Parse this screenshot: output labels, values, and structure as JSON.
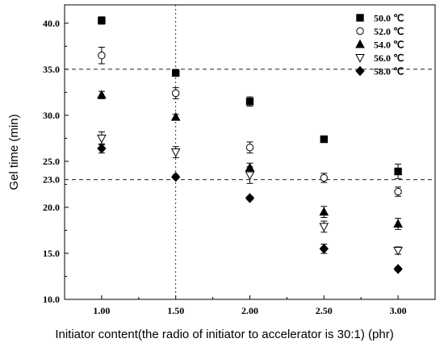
{
  "chart_data": {
    "type": "scatter",
    "xlabel": "Initiator content(the radio of initiator to accelerator is 30:1) (phr)",
    "ylabel": "Gel time (min)",
    "x": [
      1.0,
      1.5,
      2.0,
      2.5,
      3.0
    ],
    "xticks": [
      "1.00",
      "1.50",
      "2.00",
      "2.50",
      "3.00"
    ],
    "xlim": [
      0.75,
      3.25
    ],
    "ylim": [
      10.0,
      42.0
    ],
    "yticks": [
      "10.0",
      "15.0",
      "20.0",
      "25.0",
      "30.0",
      "35.0",
      "40.0"
    ],
    "extra_ytick": {
      "value": 23.0,
      "label": "23.0"
    },
    "reference_lines": {
      "horizontal": [
        35.0,
        23.0
      ],
      "vertical": [
        1.5
      ],
      "style": "dashed"
    },
    "legend_position": "top-right",
    "series": [
      {
        "name": "50.0 ℃",
        "marker": "filled-square",
        "values": [
          40.3,
          34.6,
          31.5,
          27.4,
          23.9
        ],
        "errors": [
          0.4,
          0.3,
          0.5,
          0.3,
          0.8
        ]
      },
      {
        "name": "52.0 ℃",
        "marker": "open-circle",
        "values": [
          36.5,
          32.4,
          26.5,
          23.2,
          21.7
        ],
        "errors": [
          0.9,
          0.6,
          0.6,
          0.5,
          0.5
        ]
      },
      {
        "name": "54.0 ℃",
        "marker": "filled-triangle-up",
        "values": [
          32.2,
          29.8,
          24.3,
          19.5,
          18.2
        ],
        "errors": [
          0.4,
          0.3,
          0.5,
          0.6,
          0.6
        ]
      },
      {
        "name": "56.0 ℃",
        "marker": "open-triangle-down",
        "values": [
          27.5,
          26.0,
          23.5,
          17.9,
          15.3
        ],
        "errors": [
          0.7,
          0.6,
          0.9,
          0.6,
          0.4
        ]
      },
      {
        "name": "58.0 ℃",
        "marker": "filled-diamond",
        "values": [
          26.4,
          23.3,
          21.0,
          15.5,
          13.3
        ],
        "errors": [
          0.5,
          0.2,
          0.2,
          0.5,
          0.2
        ]
      }
    ]
  }
}
